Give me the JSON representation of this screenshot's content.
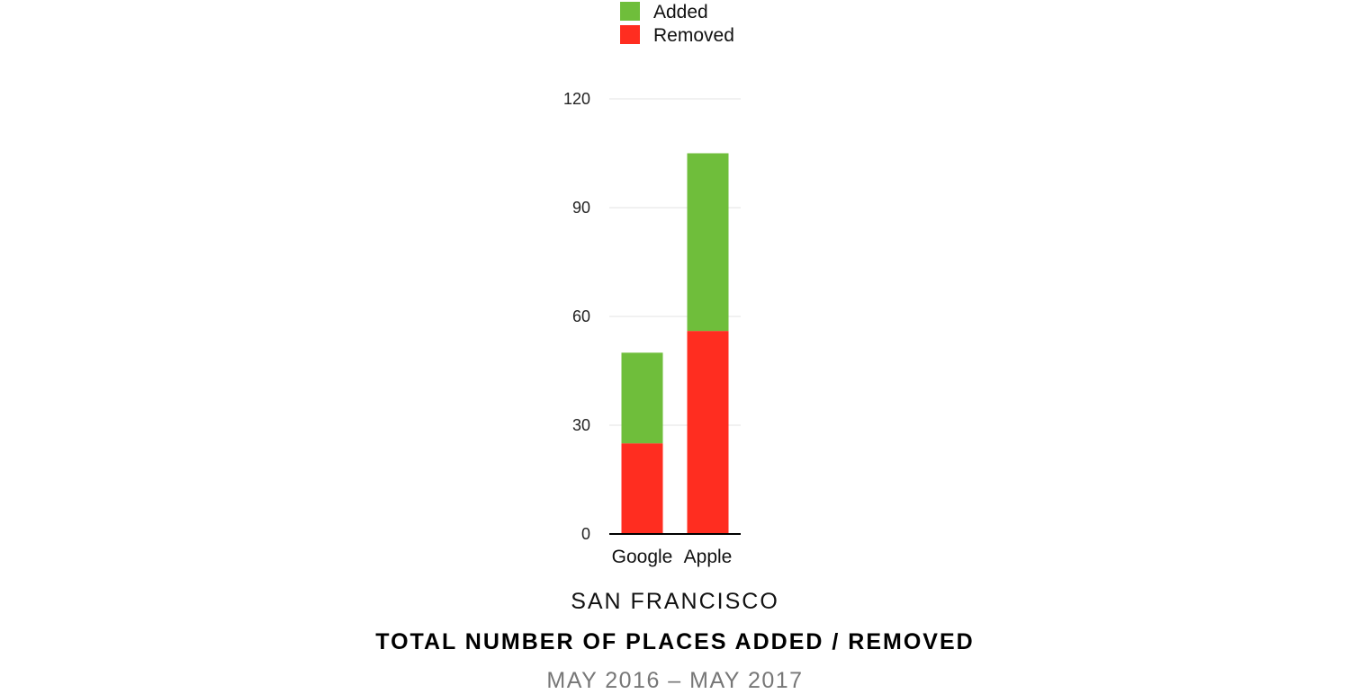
{
  "chart_data": {
    "type": "bar",
    "stacked": true,
    "categories": [
      "Google",
      "Apple"
    ],
    "series": [
      {
        "name": "Removed",
        "values": [
          25,
          56
        ],
        "color": "#ff2d20"
      },
      {
        "name": "Added",
        "values": [
          25,
          49
        ],
        "color": "#6fbe3b"
      }
    ],
    "legend_order": [
      "Added",
      "Removed"
    ],
    "ylim": [
      0,
      120
    ],
    "yticks": [
      0,
      30,
      60,
      90,
      120
    ],
    "grid": true,
    "legend_position": "top"
  },
  "captions": {
    "city": "SAN FRANCISCO",
    "title": "TOTAL NUMBER OF PLACES ADDED / REMOVED",
    "period": "MAY 2016 – MAY 2017"
  }
}
